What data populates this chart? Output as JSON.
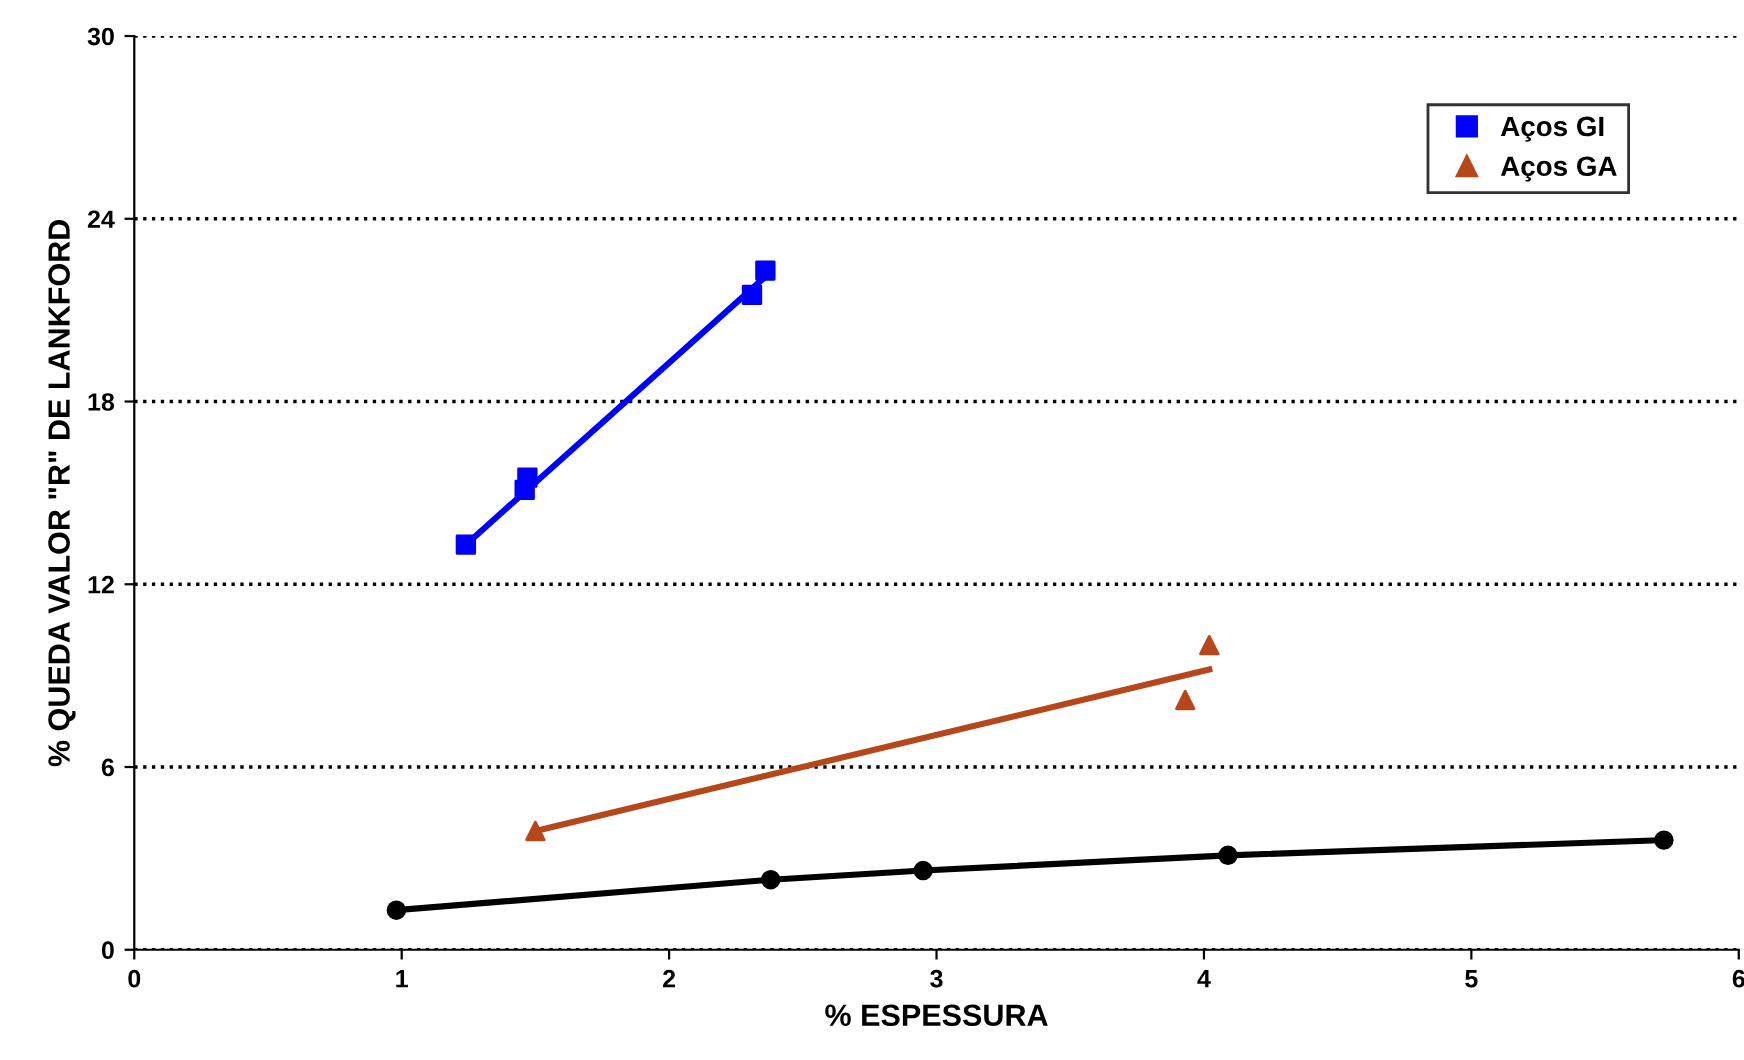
{
  "chart_data": {
    "type": "scatter",
    "xlabel": "% ESPESSURA",
    "ylabel": "% QUEDA VALOR \"R\" DE LANKFORD",
    "xlim": [
      0,
      6
    ],
    "xticks": [
      0,
      1,
      2,
      3,
      4,
      5,
      6
    ],
    "ylim": [
      0,
      30
    ],
    "yticks": [
      0,
      6,
      12,
      18,
      24,
      30
    ],
    "grid": "y",
    "legend": "top right",
    "series": [
      {
        "name": "Aços GI",
        "marker": "square",
        "color": "#0000ff",
        "x": [
          1.24,
          1.46,
          1.47,
          2.31,
          2.36
        ],
        "values": [
          13.3,
          15.1,
          15.5,
          21.5,
          22.3
        ]
      },
      {
        "name": "Aços GA",
        "marker": "triangle",
        "color": "#b5471b",
        "x": [
          1.5,
          3.93,
          4.02
        ],
        "values": [
          3.9,
          8.2,
          10.0
        ]
      },
      {
        "type": "line",
        "marker": "circle",
        "color": "#000000",
        "x": [
          0.98,
          2.38,
          2.95,
          4.09,
          5.72
        ],
        "values": [
          1.3,
          2.3,
          2.6,
          3.1,
          3.6
        ]
      },
      {
        "type": "line",
        "marker": "none",
        "color": "#0000ff",
        "x": [
          1.24,
          2.36
        ],
        "values": [
          13.3,
          22.1
        ]
      },
      {
        "type": "line",
        "marker": "none",
        "color": "#b5471b",
        "x": [
          1.5,
          4.02
        ],
        "values": [
          3.9,
          9.2
        ]
      }
    ]
  }
}
